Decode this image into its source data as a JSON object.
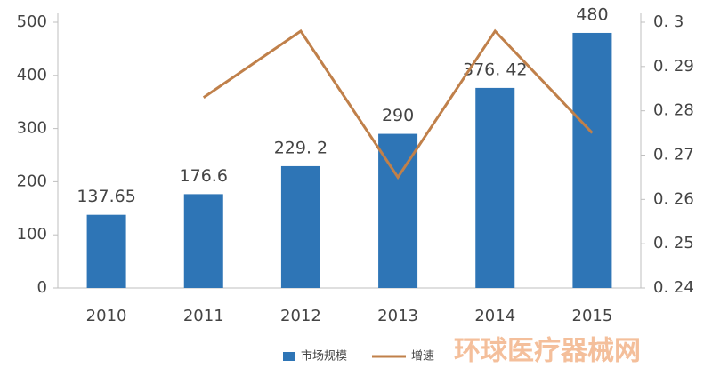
{
  "chart_data": {
    "type": "bar_line",
    "categories": [
      "2010",
      "2011",
      "2012",
      "2013",
      "2014",
      "2015"
    ],
    "series": [
      {
        "name": "市场规模",
        "type": "bar",
        "color": "#2e75b6",
        "values": [
          137.65,
          176.6,
          229.2,
          290,
          376.42,
          480
        ],
        "value_labels": [
          "137.65",
          "176.6",
          "229. 2",
          "290",
          "376. 42",
          "480"
        ]
      },
      {
        "name": "增速",
        "type": "line",
        "axis": "y2",
        "color": "#c0804a",
        "values": [
          null,
          0.283,
          0.298,
          0.265,
          0.298,
          0.275
        ]
      }
    ],
    "ylim": [
      0,
      500
    ],
    "yticks": [
      0,
      100,
      200,
      300,
      400,
      500
    ],
    "y2lim": [
      0.24,
      0.3
    ],
    "y2ticks": [
      {
        "value": 0.24,
        "label": "0. 24"
      },
      {
        "value": 0.25,
        "label": "0. 25"
      },
      {
        "value": 0.26,
        "label": "0. 26"
      },
      {
        "value": 0.27,
        "label": "0. 27"
      },
      {
        "value": 0.28,
        "label": "0. 28"
      },
      {
        "value": 0.29,
        "label": "0. 29"
      },
      {
        "value": 0.3,
        "label": "0. 3"
      }
    ],
    "legend": "bottom",
    "watermark": "环球医疗器械网"
  }
}
